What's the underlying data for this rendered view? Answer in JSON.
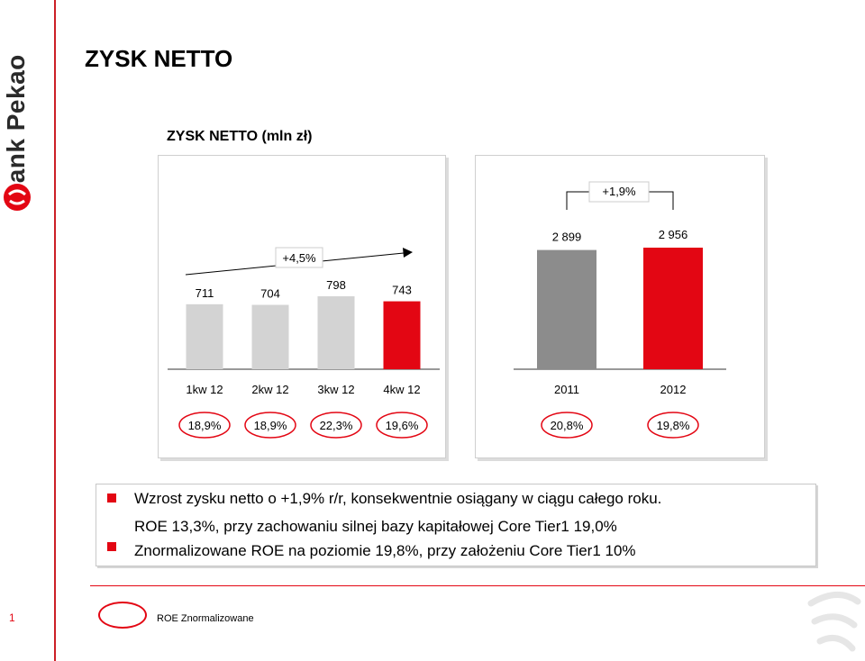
{
  "brand": {
    "name": "Bank Pekao"
  },
  "slide": {
    "title": "ZYSK NETTO"
  },
  "chart_data": [
    {
      "type": "bar",
      "title": "ZYSK NETTO (mln zł)",
      "categories": [
        "1kw 12",
        "2kw 12",
        "3kw 12",
        "4kw 12"
      ],
      "values": [
        711,
        704,
        798,
        743
      ],
      "value_labels": [
        "711",
        "704",
        "798",
        "743"
      ],
      "colors": [
        "#d3d3d3",
        "#d3d3d3",
        "#d3d3d3",
        "#e30613"
      ],
      "roe_labels": [
        "18,9%",
        "18,9%",
        "22,3%",
        "19,6%"
      ],
      "growth_label": "+4,5%"
    },
    {
      "type": "bar",
      "categories": [
        "2011",
        "2012"
      ],
      "values": [
        2899,
        2956
      ],
      "value_labels": [
        "2 899",
        "2 956"
      ],
      "colors": [
        "#8c8c8c",
        "#e30613"
      ],
      "roe_labels": [
        "20,8%",
        "19,8%"
      ],
      "growth_label": "+1,9%"
    }
  ],
  "bullets": [
    "Wzrost zysku netto o +1,9% r/r, konsekwentnie osiągany w ciągu całego roku.",
    "ROE 13,3%, przy zachowaniu silnej bazy kapitałowej Core Tier1 19,0%",
    "Znormalizowane ROE na poziomie 19,8%, przy założeniu Core Tier1 10%"
  ],
  "footer": {
    "page_number": "1",
    "legend_label": "ROE Znormalizowane"
  },
  "colors": {
    "accent": "#e30613",
    "bar_grey": "#d3d3d3",
    "bar_dark_grey": "#8c8c8c"
  }
}
